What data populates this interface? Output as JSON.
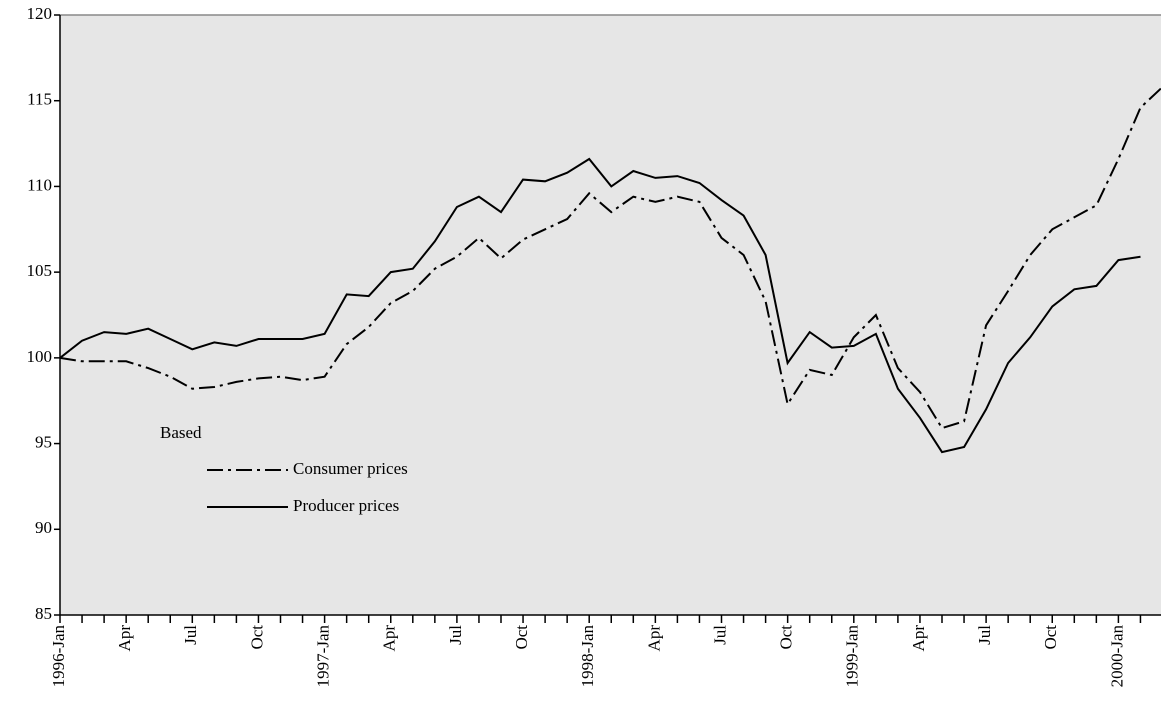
{
  "chart_data": {
    "type": "line",
    "legend_title": "Based",
    "categories": [
      "1996-Jan",
      null,
      null,
      "Apr",
      null,
      null,
      "Jul",
      null,
      null,
      "Oct",
      null,
      null,
      "1997-Jan",
      null,
      null,
      "Apr",
      null,
      null,
      "Jul",
      null,
      null,
      "Oct",
      null,
      null,
      "1998-Jan",
      null,
      null,
      "Apr",
      null,
      null,
      "Jul",
      null,
      null,
      "Oct",
      null,
      null,
      "1999-Jan",
      null,
      null,
      "Apr",
      null,
      null,
      "Jul",
      null,
      null,
      "Oct",
      null,
      null,
      "2000-Jan",
      null,
      null
    ],
    "series": [
      {
        "name": "Consumer prices",
        "color": "#000000",
        "line_style": "dashdot",
        "values": [
          100,
          99.8,
          99.8,
          99.8,
          99.4,
          98.9,
          98.2,
          98.3,
          98.6,
          98.8,
          98.9,
          98.7,
          98.9,
          100.8,
          101.8,
          103.2,
          103.9,
          105.2,
          105.9,
          107.0,
          105.8,
          106.9,
          107.5,
          108.1,
          109.6,
          108.5,
          109.4,
          109.1,
          109.4,
          109.1,
          107.0,
          106.0,
          103.3,
          97.3,
          99.3,
          99.0,
          101.2,
          102.5,
          99.4,
          98.0,
          95.9,
          96.3,
          101.9,
          103.9,
          106.0,
          107.5,
          108.2,
          108.9,
          111.6,
          114.6,
          115.8
        ]
      },
      {
        "name": "Producer prices",
        "color": "#000000",
        "line_style": "solid",
        "values": [
          100,
          101.0,
          101.5,
          101.4,
          101.7,
          101.1,
          100.5,
          100.9,
          100.7,
          101.1,
          101.1,
          101.1,
          101.4,
          103.7,
          103.6,
          105.0,
          105.2,
          106.8,
          108.8,
          109.4,
          108.5,
          110.4,
          110.3,
          110.8,
          111.6,
          110.0,
          110.9,
          110.5,
          110.6,
          110.2,
          109.2,
          108.3,
          106.0,
          99.7,
          101.5,
          100.6,
          100.7,
          101.4,
          98.2,
          96.5,
          94.5,
          94.8,
          97.0,
          99.7,
          101.2,
          103.0,
          104.0,
          104.2,
          105.7,
          105.9,
          null
        ]
      }
    ],
    "ylim": [
      85,
      120
    ],
    "yticks": [
      85,
      90,
      95,
      100,
      105,
      110,
      115,
      120
    ],
    "plot_background": "#e6e6e6"
  }
}
